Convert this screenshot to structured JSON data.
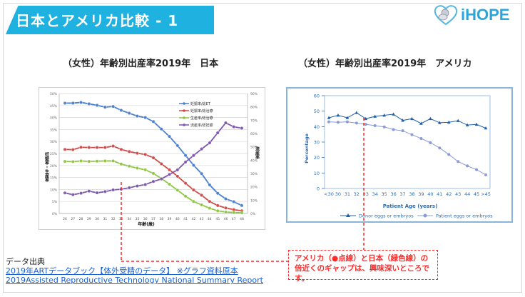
{
  "header": {
    "title": "日本とアメリカ比較 - 1",
    "logo_text": "iHOPE",
    "brand_color": "#1fb1e0"
  },
  "left_heading": "（女性）年齢別出産率2019年　日本",
  "right_heading": "（女性）年齢別出産率2019年　アメリカ",
  "chart_data": [
    {
      "type": "line",
      "title": "（女性）年齢別出産率2019年　日本",
      "xlabel": "年齢(歳)",
      "ylabel": "妊娠率・生産率",
      "y2label": "流産率",
      "categories": [
        "26",
        "27",
        "28",
        "29",
        "30",
        "31",
        "32",
        "33",
        "34",
        "35",
        "36",
        "37",
        "38",
        "39",
        "40",
        "41",
        "42",
        "43",
        "44",
        "45",
        "46",
        "47",
        "48"
      ],
      "ylim": [
        0,
        50
      ],
      "y_ticks": [
        "0%",
        "5%",
        "10%",
        "15%",
        "20%",
        "25%",
        "30%",
        "35%",
        "40%",
        "45%",
        "50%"
      ],
      "y2lim": [
        0,
        90
      ],
      "y2_ticks": [
        "0%",
        "10%",
        "20%",
        "30%",
        "40%",
        "50%",
        "60%",
        "70%",
        "80%",
        "90%"
      ],
      "grid": true,
      "legend_position": "top-right",
      "series": [
        {
          "name": "妊娠率/総ET",
          "axis": "left",
          "color": "#4a7fd0",
          "values": [
            46,
            46,
            46.3,
            45.7,
            45.1,
            44.3,
            44.6,
            43,
            41.8,
            40.6,
            40,
            38.3,
            35.2,
            32.1,
            28.3,
            24.2,
            20.1,
            16.6,
            11.9,
            8.4,
            6.1,
            4.9,
            3.3
          ]
        },
        {
          "name": "妊娠率/総治療",
          "axis": "left",
          "color": "#cf4a47",
          "values": [
            26.7,
            26.6,
            27.6,
            27.5,
            27.5,
            27.5,
            28.1,
            26.7,
            25.8,
            25.1,
            24.6,
            23.2,
            20.7,
            18.2,
            15.5,
            12.6,
            9.8,
            7.6,
            5.0,
            3.3,
            2.3,
            1.6,
            1.1
          ]
        },
        {
          "name": "生産率/総治療",
          "axis": "left",
          "color": "#8ec641",
          "values": [
            21.7,
            21.6,
            21.9,
            21.7,
            21.8,
            21.9,
            21.9,
            20.6,
            19.7,
            18.9,
            18.2,
            16.7,
            14.6,
            12.2,
            9.7,
            7.2,
            5.0,
            3.6,
            2.2,
            1.1,
            0.6,
            0.4,
            0.3
          ]
        },
        {
          "name": "流産率/総妊娠",
          "axis": "right",
          "color": "#7d56b0",
          "values": [
            15.4,
            14.1,
            15.2,
            16.8,
            15.5,
            16.4,
            17.7,
            18.2,
            19.3,
            20.6,
            21.7,
            24,
            25.9,
            29.3,
            32.7,
            38.6,
            43.5,
            48.4,
            53,
            60.5,
            68,
            65,
            64
          ]
        }
      ]
    },
    {
      "type": "line",
      "title": "（女性）年齢別出産率2019年　アメリカ",
      "xlabel": "Patient Age (years)",
      "ylabel": "Percentage",
      "categories": [
        "<30",
        "30",
        "31",
        "32",
        "33",
        "34",
        "35",
        "36",
        "37",
        "38",
        "39",
        "40",
        "41",
        "42",
        "43",
        "44",
        "45",
        ">45"
      ],
      "ylim": [
        0,
        60
      ],
      "y_ticks": [
        "0",
        "10",
        "20",
        "30",
        "40",
        "50",
        "60"
      ],
      "grid": false,
      "legend_position": "bottom",
      "series": [
        {
          "name": "Donor eggs or embryos",
          "marker": "triangle",
          "color": "#1f5fa8",
          "values": [
            45.7,
            47.3,
            45.7,
            49,
            45.1,
            46.6,
            47.3,
            48,
            44,
            45.1,
            42,
            45.1,
            42.5,
            42.8,
            43.8,
            41,
            41.4,
            39
          ]
        },
        {
          "name": "Patient eggs or embryos",
          "marker": "circle",
          "color": "#8a9bd6",
          "values": [
            43.1,
            42.8,
            43.1,
            42.3,
            41.5,
            40.6,
            39.8,
            38.1,
            37.3,
            34.8,
            32.3,
            29.6,
            26.2,
            22,
            17.4,
            14.6,
            12.2,
            8.8
          ]
        }
      ]
    }
  ],
  "source": {
    "label": "データ出典",
    "link1": "2019年ARTデータブック【体外受精のデータ】 ※グラフ資料原本",
    "link2": "2019Assisted Reproductive Technology National Summary Report"
  },
  "note": {
    "text": "アメリカ（●点線）と日本（緑色線）の倍近くのギャップは、興味深いところです。",
    "color": "#ff2a2a"
  }
}
